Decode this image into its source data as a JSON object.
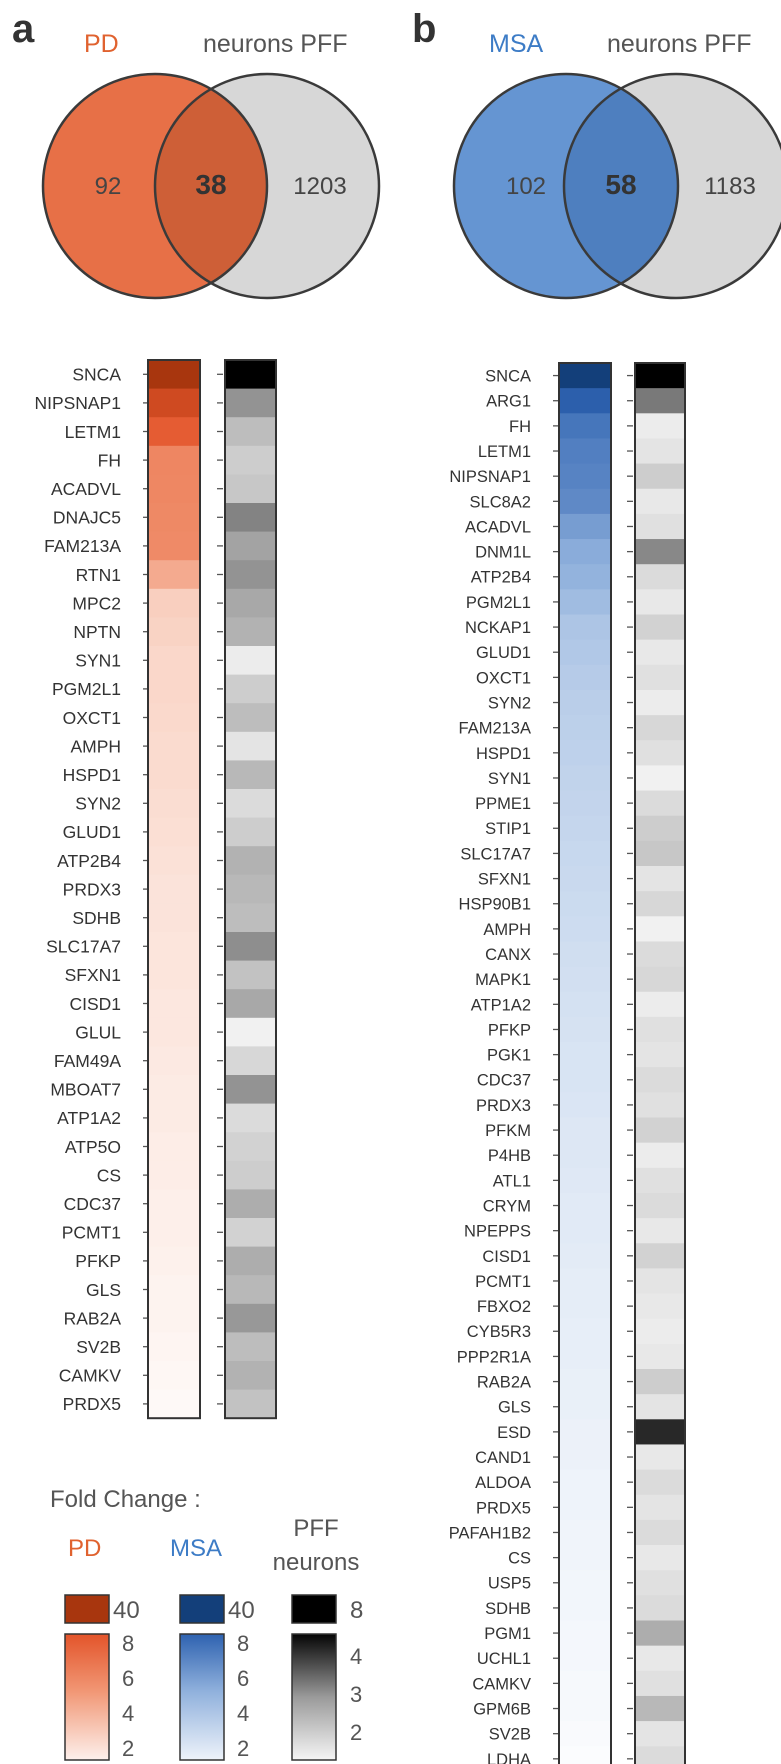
{
  "panels": [
    {
      "letter": "a",
      "disease_label": "PD",
      "pff_label": "neurons PFF",
      "disease_color": "#e0622f",
      "venn": {
        "left_only": "92",
        "overlap": "38",
        "right_only": "1203"
      },
      "genes": [
        "SNCA",
        "NIPSNAP1",
        "LETM1",
        "FH",
        "ACADVL",
        "DNAJC5",
        "FAM213A",
        "RTN1",
        "MPC2",
        "NPTN",
        "SYN1",
        "PGM2L1",
        "OXCT1",
        "AMPH",
        "HSPD1",
        "SYN2",
        "GLUD1",
        "ATP2B4",
        "PRDX3",
        "SDHB",
        "SLC17A7",
        "SFXN1",
        "CISD1",
        "GLUL",
        "FAM49A",
        "MBOAT7",
        "ATP1A2",
        "ATP5O",
        "CS",
        "CDC37",
        "PCMT1",
        "PFKP",
        "GLS",
        "RAB2A",
        "SV2B",
        "CAMKV",
        "PRDX5"
      ]
    },
    {
      "letter": "b",
      "disease_label": "MSA",
      "pff_label": "neurons PFF",
      "disease_color": "#3d7cc6",
      "venn": {
        "left_only": "102",
        "overlap": "58",
        "right_only": "1183"
      },
      "genes": [
        "SNCA",
        "ARG1",
        "FH",
        "LETM1",
        "NIPSNAP1",
        "SLC8A2",
        "ACADVL",
        "DNM1L",
        "ATP2B4",
        "PGM2L1",
        "NCKAP1",
        "GLUD1",
        "OXCT1",
        "SYN2",
        "FAM213A",
        "HSPD1",
        "SYN1",
        "PPME1",
        "STIP1",
        "SLC17A7",
        "SFXN1",
        "HSP90B1",
        "AMPH",
        "CANX",
        "MAPK1",
        "ATP1A2",
        "PFKP",
        "PGK1",
        "CDC37",
        "PRDX3",
        "PFKM",
        "P4HB",
        "ATL1",
        "CRYM",
        "NPEPPS",
        "CISD1",
        "PCMT1",
        "FBXO2",
        "CYB5R3",
        "PPP2R1A",
        "RAB2A",
        "GLS",
        "ESD",
        "CAND1",
        "ALDOA",
        "PRDX5",
        "PAFAH1B2",
        "CS",
        "USP5",
        "SDHB",
        "PGM1",
        "UCHL1",
        "CAMKV",
        "GPM6B",
        "SV2B",
        "LDHA"
      ]
    }
  ],
  "legend": {
    "title": "Fold Change :",
    "pd_label": "PD",
    "msa_label": "MSA",
    "pff_label_line1": "PFF",
    "pff_label_line2": "neurons",
    "pd_top": "40",
    "pd_ticks": [
      "8",
      "6",
      "4",
      "2"
    ],
    "msa_top": "40",
    "msa_ticks": [
      "8",
      "6",
      "4",
      "2"
    ],
    "pff_top": "8",
    "pff_ticks": [
      "4",
      "3",
      "2"
    ]
  },
  "chart_data": [
    {
      "type": "heatmap",
      "panel": "a",
      "rows": [
        "SNCA",
        "NIPSNAP1",
        "LETM1",
        "FH",
        "ACADVL",
        "DNAJC5",
        "FAM213A",
        "RTN1",
        "MPC2",
        "NPTN",
        "SYN1",
        "PGM2L1",
        "OXCT1",
        "AMPH",
        "HSPD1",
        "SYN2",
        "GLUD1",
        "ATP2B4",
        "PRDX3",
        "SDHB",
        "SLC17A7",
        "SFXN1",
        "CISD1",
        "GLUL",
        "FAM49A",
        "MBOAT7",
        "ATP1A2",
        "ATP5O",
        "CS",
        "CDC37",
        "PCMT1",
        "PFKP",
        "GLS",
        "RAB2A",
        "SV2B",
        "CAMKV",
        "PRDX5"
      ],
      "series": [
        {
          "name": "PD",
          "values": [
            40,
            12,
            7.5,
            5,
            4.9,
            4.8,
            4.7,
            3.5,
            2.6,
            2.5,
            2.4,
            2.4,
            2.35,
            2.3,
            2.3,
            2.25,
            2.2,
            2.15,
            2.1,
            2.1,
            2.05,
            2.05,
            2.0,
            2.0,
            1.95,
            1.9,
            1.9,
            1.85,
            1.85,
            1.8,
            1.8,
            1.75,
            1.7,
            1.7,
            1.65,
            1.6,
            1.55
          ]
        },
        {
          "name": "neurons PFF",
          "values": [
            8,
            3.3,
            2.5,
            2.2,
            2.3,
            3.6,
            3.0,
            3.3,
            2.9,
            2.7,
            1.5,
            2.2,
            2.5,
            1.7,
            2.6,
            1.9,
            2.2,
            2.7,
            2.6,
            2.5,
            3.4,
            2.4,
            2.9,
            1.4,
            2.0,
            3.3,
            1.9,
            2.1,
            2.2,
            2.8,
            2.1,
            2.8,
            2.6,
            3.2,
            2.5,
            2.7,
            2.4
          ]
        }
      ]
    },
    {
      "type": "heatmap",
      "panel": "b",
      "rows": [
        "SNCA",
        "ARG1",
        "FH",
        "LETM1",
        "NIPSNAP1",
        "SLC8A2",
        "ACADVL",
        "DNM1L",
        "ATP2B4",
        "PGM2L1",
        "NCKAP1",
        "GLUD1",
        "OXCT1",
        "SYN2",
        "FAM213A",
        "HSPD1",
        "SYN1",
        "PPME1",
        "STIP1",
        "SLC17A7",
        "SFXN1",
        "HSP90B1",
        "AMPH",
        "CANX",
        "MAPK1",
        "ATP1A2",
        "PFKP",
        "PGK1",
        "CDC37",
        "PRDX3",
        "PFKM",
        "P4HB",
        "ATL1",
        "CRYM",
        "NPEPPS",
        "CISD1",
        "PCMT1",
        "FBXO2",
        "CYB5R3",
        "PPP2R1A",
        "RAB2A",
        "GLS",
        "ESD",
        "CAND1",
        "ALDOA",
        "PRDX5",
        "PAFAH1B2",
        "CS",
        "USP5",
        "SDHB",
        "PGM1",
        "UCHL1",
        "CAMKV",
        "GPM6B",
        "SV2B",
        "LDHA"
      ],
      "series": [
        {
          "name": "MSA",
          "values": [
            40,
            9,
            7,
            6.5,
            6.3,
            6,
            5,
            4.2,
            3.9,
            3.6,
            3.3,
            3.2,
            3.1,
            3.0,
            2.95,
            2.9,
            2.85,
            2.8,
            2.75,
            2.7,
            2.65,
            2.6,
            2.55,
            2.5,
            2.45,
            2.4,
            2.35,
            2.3,
            2.3,
            2.25,
            2.2,
            2.2,
            2.15,
            2.1,
            2.1,
            2.05,
            2.0,
            2.0,
            1.95,
            1.95,
            1.9,
            1.9,
            1.85,
            1.85,
            1.8,
            1.8,
            1.75,
            1.75,
            1.7,
            1.7,
            1.65,
            1.65,
            1.6,
            1.6,
            1.55,
            1.5
          ]
        },
        {
          "name": "neurons PFF",
          "values": [
            8,
            3.8,
            1.5,
            1.7,
            2.2,
            1.6,
            1.8,
            3.5,
            1.9,
            1.6,
            2.1,
            1.6,
            1.8,
            1.5,
            2.0,
            1.8,
            1.4,
            1.9,
            2.2,
            2.3,
            1.7,
            2.0,
            1.4,
            1.9,
            2.0,
            1.5,
            1.8,
            1.7,
            1.9,
            1.8,
            2.1,
            1.5,
            1.8,
            1.9,
            1.6,
            2.1,
            1.7,
            1.6,
            1.5,
            1.6,
            2.2,
            1.7,
            4.0,
            1.6,
            1.9,
            1.7,
            1.9,
            1.6,
            1.8,
            1.9,
            2.8,
            1.6,
            1.8,
            2.6,
            1.7,
            1.9
          ]
        }
      ]
    }
  ]
}
